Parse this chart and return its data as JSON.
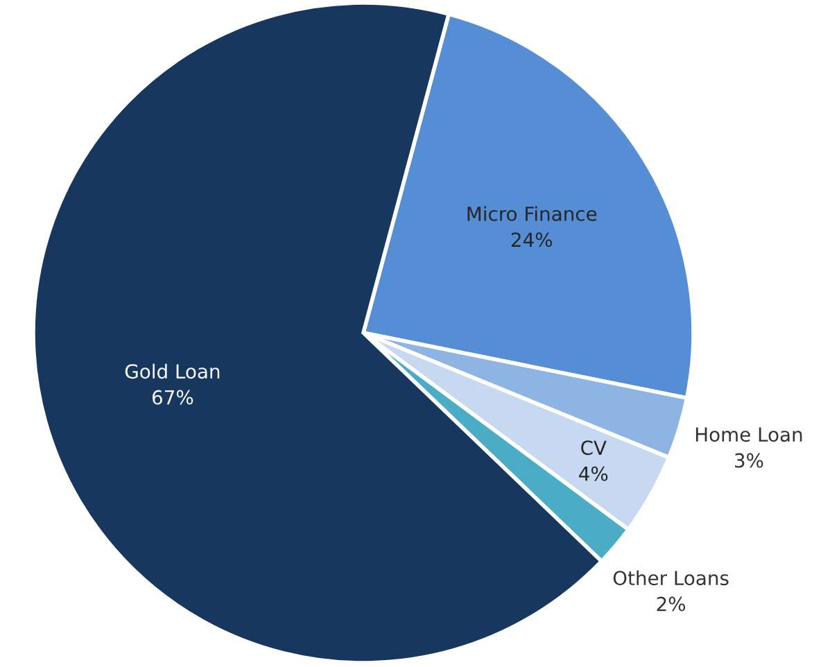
{
  "chart_data": {
    "type": "pie",
    "categories": [
      "Micro Finance",
      "Home Loan",
      "CV",
      "Other Loans",
      "Gold Loan"
    ],
    "values": [
      24,
      3,
      4,
      2,
      67
    ],
    "value_labels": [
      "24%",
      "3%",
      "4%",
      "2%",
      "67%"
    ],
    "colors": [
      "#558ed5",
      "#8db4e2",
      "#c6d9f1",
      "#4bacc6",
      "#17375e"
    ],
    "legend": false
  }
}
